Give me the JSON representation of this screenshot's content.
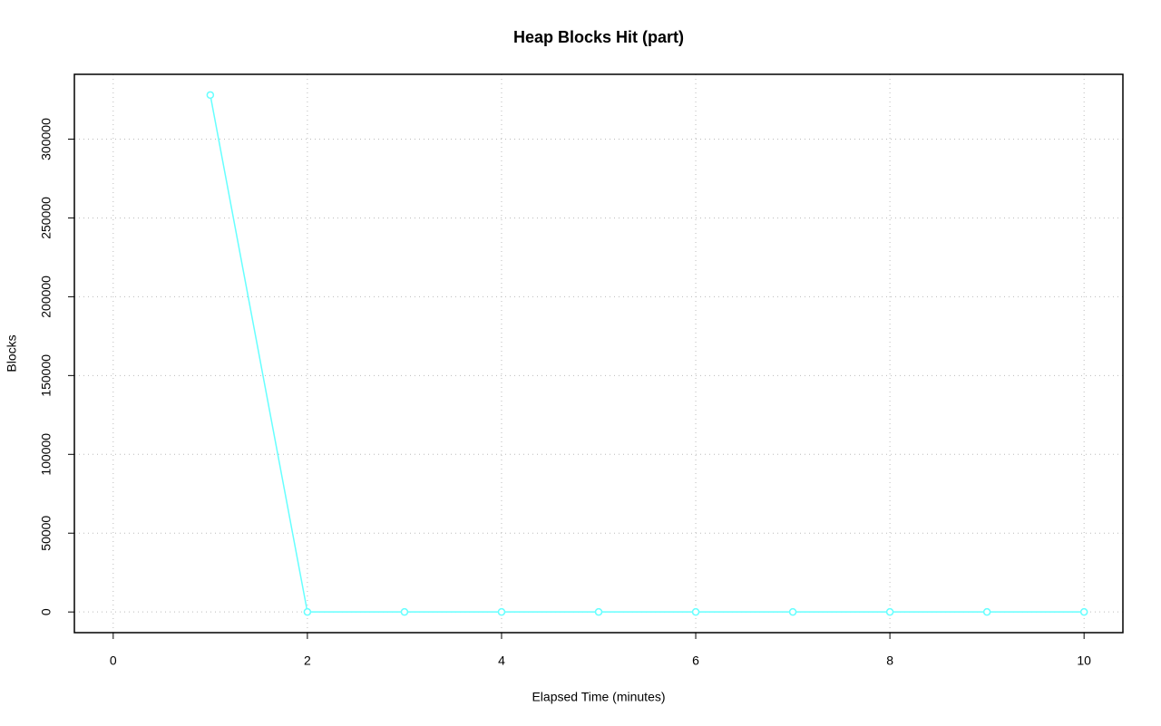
{
  "chart_data": {
    "type": "line",
    "title": "Heap Blocks Hit (part)",
    "x_label": "Elapsed Time (minutes)",
    "y_label": "Blocks",
    "x": [
      1,
      2,
      3,
      4,
      5,
      6,
      7,
      8,
      9,
      10
    ],
    "series": [
      {
        "color": "#66ffff",
        "values": [
          328000,
          0,
          0,
          0,
          0,
          0,
          0,
          0,
          0,
          0
        ]
      }
    ],
    "xlim": [
      -0.4,
      10.4
    ],
    "xticks": [
      0,
      2,
      4,
      6,
      8,
      10
    ],
    "ylim": [
      -13120,
      341120
    ],
    "yticks": [
      0,
      50000,
      100000,
      150000,
      200000,
      250000,
      300000
    ],
    "grid": true
  }
}
